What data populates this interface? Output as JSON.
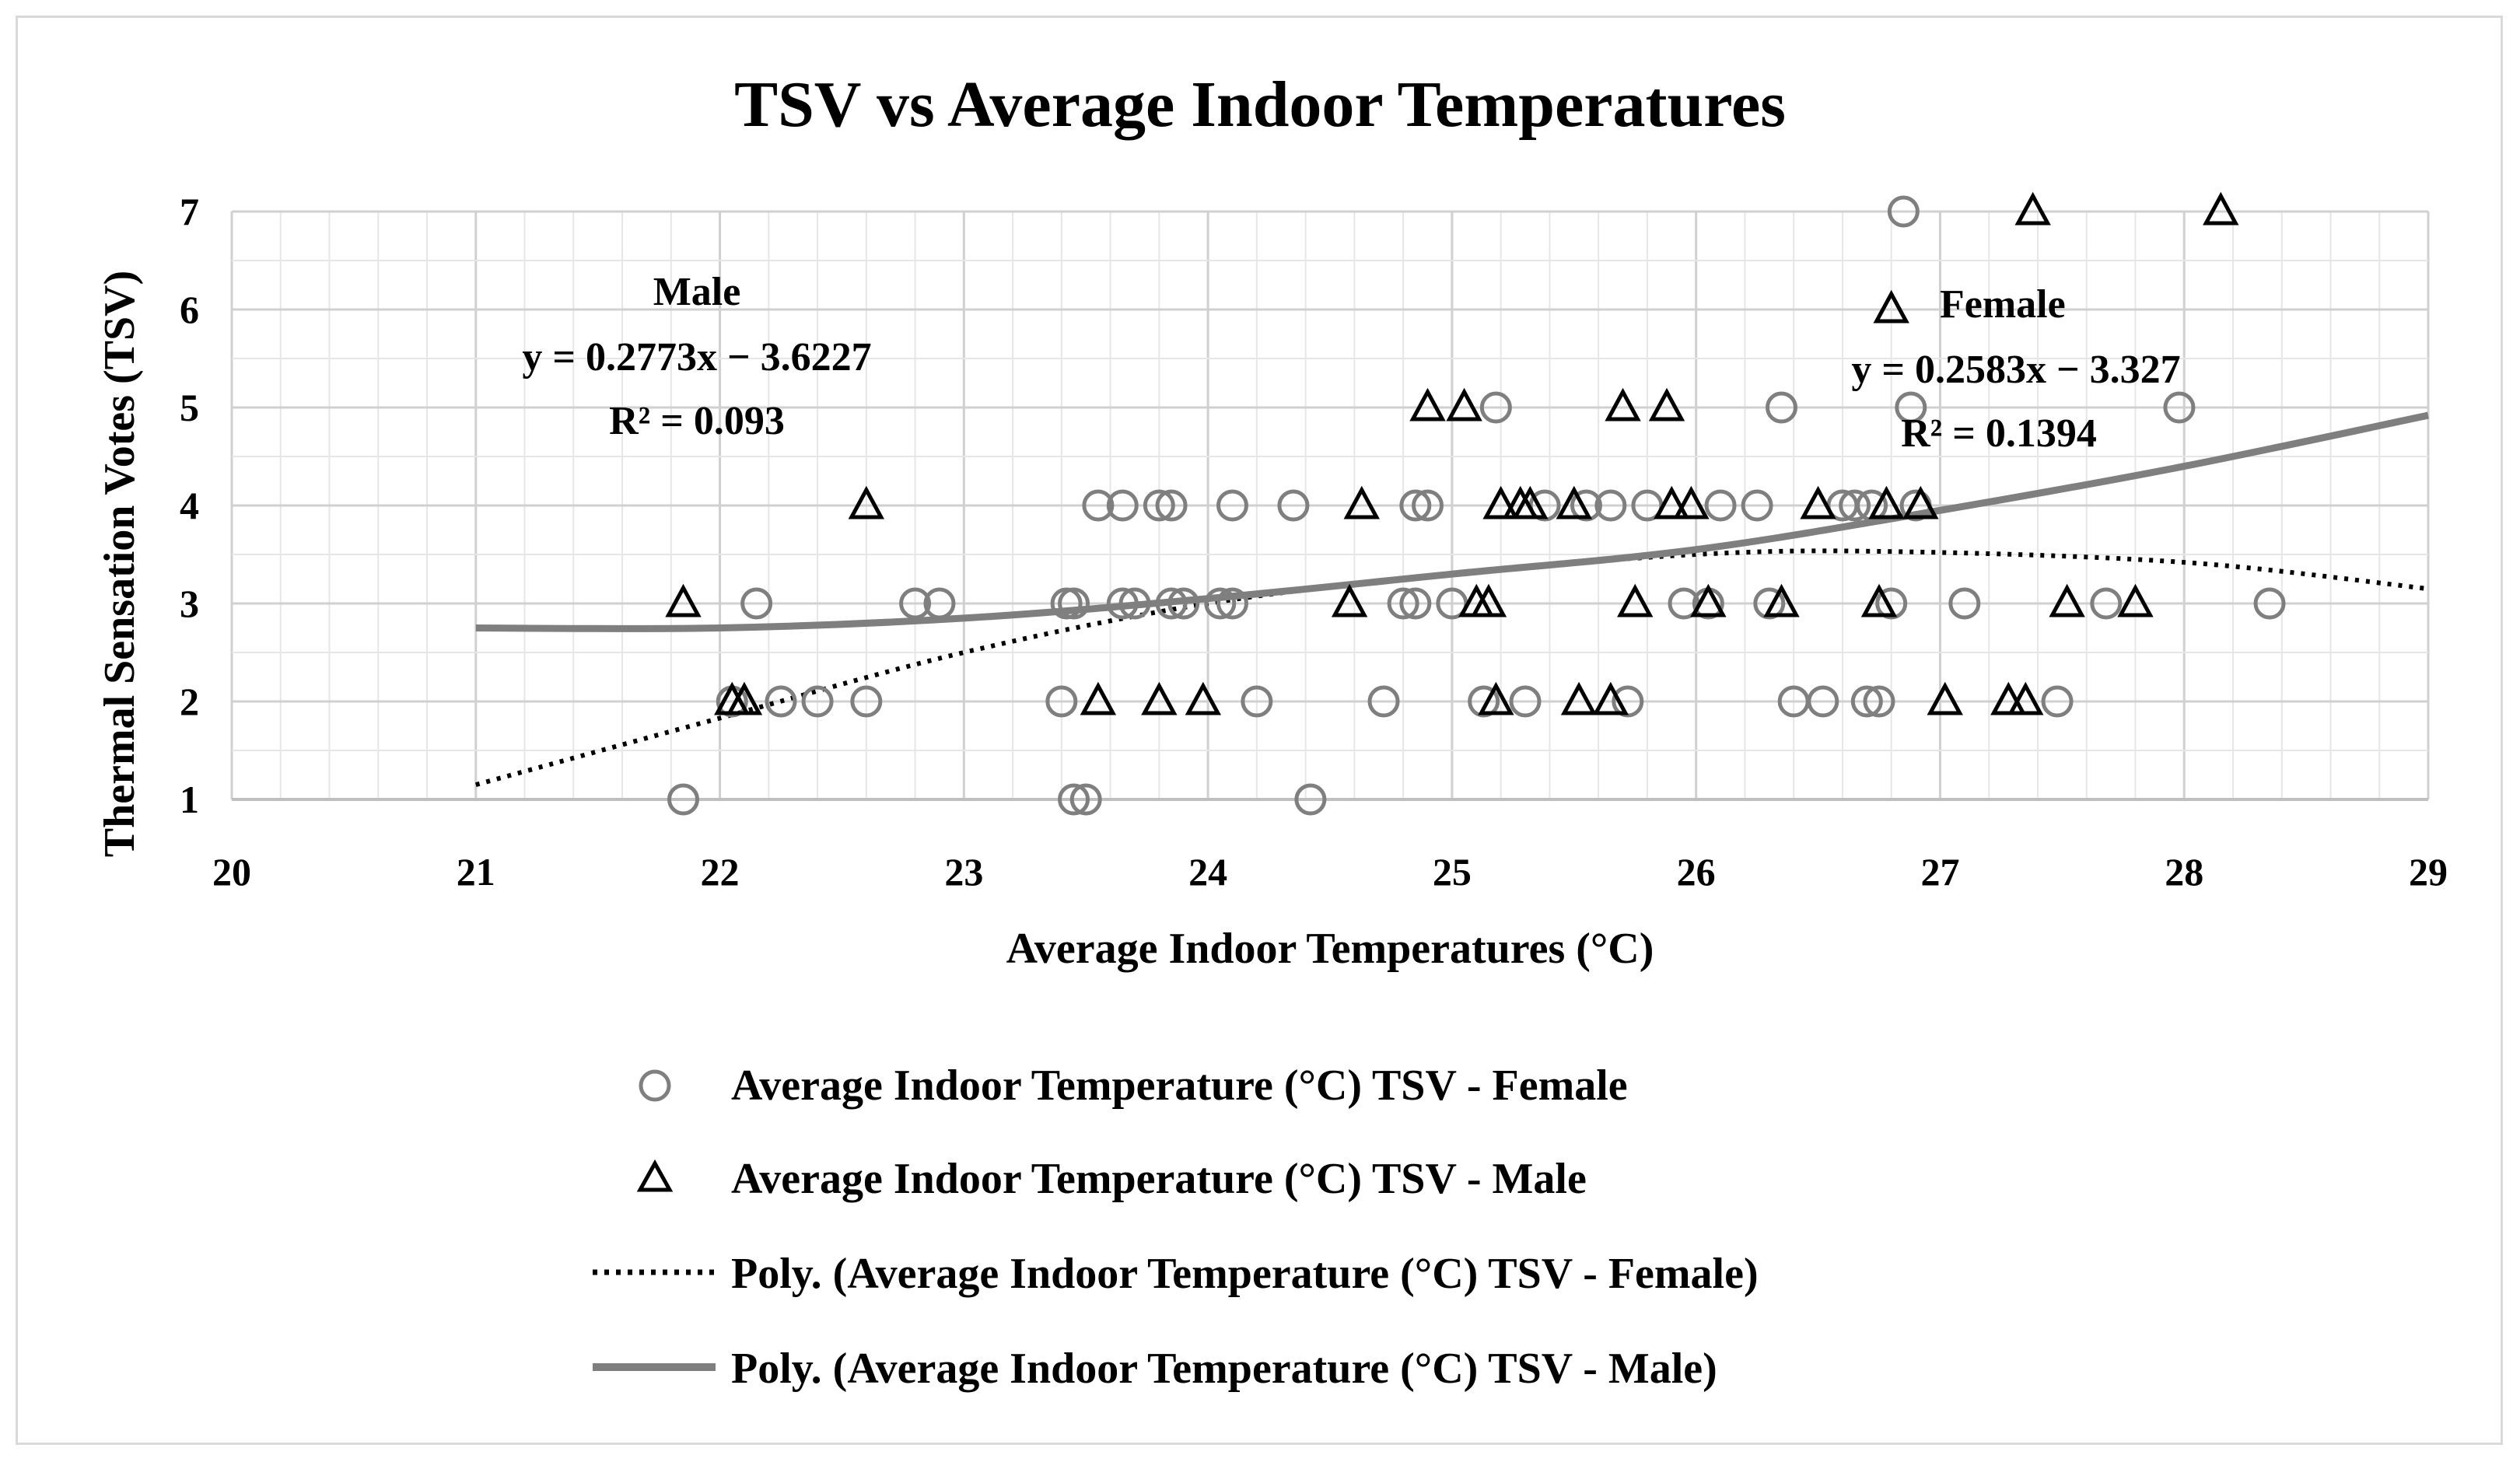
{
  "chart_data": {
    "type": "scatter",
    "title": "TSV vs Average Indoor Temperatures",
    "xlabel": "Average Indoor Temperatures (°C)",
    "ylabel": "Thermal Sensation Votes (TSV)",
    "xlim": [
      20,
      29
    ],
    "ylim": [
      1,
      7
    ],
    "x_ticks": [
      "20",
      "21",
      "22",
      "23",
      "24",
      "25",
      "26",
      "27",
      "28",
      "29"
    ],
    "y_ticks": [
      "1",
      "2",
      "3",
      "4",
      "5",
      "6",
      "7"
    ],
    "grid": true,
    "legend_position": "bottom",
    "series": [
      {
        "name": "Average Indoor Temperature (°C) TSV - Female",
        "marker": "circle",
        "color": "#7f7f7f",
        "points": [
          [
            21.85,
            1
          ],
          [
            22.15,
            3
          ],
          [
            22.05,
            2
          ],
          [
            22.25,
            2
          ],
          [
            22.4,
            2
          ],
          [
            22.6,
            2
          ],
          [
            22.8,
            3
          ],
          [
            22.9,
            3
          ],
          [
            23.4,
            2
          ],
          [
            23.45,
            3
          ],
          [
            23.42,
            3
          ],
          [
            23.45,
            1
          ],
          [
            23.5,
            1
          ],
          [
            23.55,
            4
          ],
          [
            23.65,
            4
          ],
          [
            23.65,
            3
          ],
          [
            23.7,
            3
          ],
          [
            23.8,
            4
          ],
          [
            23.85,
            4
          ],
          [
            23.85,
            3
          ],
          [
            23.9,
            3
          ],
          [
            24.05,
            3
          ],
          [
            24.1,
            3
          ],
          [
            24.1,
            4
          ],
          [
            24.2,
            2
          ],
          [
            24.35,
            4
          ],
          [
            24.42,
            1
          ],
          [
            24.72,
            2
          ],
          [
            24.8,
            3
          ],
          [
            24.85,
            4
          ],
          [
            24.85,
            3
          ],
          [
            24.9,
            4
          ],
          [
            25.0,
            3
          ],
          [
            25.13,
            2
          ],
          [
            25.18,
            5
          ],
          [
            25.3,
            2
          ],
          [
            25.38,
            4
          ],
          [
            25.55,
            4
          ],
          [
            25.65,
            4
          ],
          [
            25.72,
            2
          ],
          [
            25.8,
            4
          ],
          [
            25.95,
            3
          ],
          [
            26.05,
            3
          ],
          [
            26.1,
            4
          ],
          [
            26.25,
            4
          ],
          [
            26.3,
            3
          ],
          [
            26.35,
            5
          ],
          [
            26.4,
            2
          ],
          [
            26.52,
            2
          ],
          [
            26.6,
            4
          ],
          [
            26.65,
            4
          ],
          [
            26.7,
            2
          ],
          [
            26.72,
            4
          ],
          [
            26.75,
            2
          ],
          [
            26.8,
            3
          ],
          [
            26.85,
            7
          ],
          [
            26.88,
            5
          ],
          [
            26.9,
            4
          ],
          [
            27.1,
            3
          ],
          [
            27.48,
            2
          ],
          [
            27.68,
            3
          ],
          [
            27.98,
            5
          ],
          [
            28.35,
            3
          ]
        ]
      },
      {
        "name": "Average Indoor Temperature (°C) TSV - Male",
        "marker": "triangle",
        "color": "#000000",
        "points": [
          [
            21.85,
            3
          ],
          [
            22.05,
            2
          ],
          [
            22.1,
            2
          ],
          [
            22.6,
            4
          ],
          [
            23.55,
            2
          ],
          [
            23.8,
            2
          ],
          [
            23.98,
            2
          ],
          [
            24.58,
            3
          ],
          [
            24.63,
            4
          ],
          [
            24.9,
            5
          ],
          [
            25.05,
            5
          ],
          [
            25.1,
            3
          ],
          [
            25.15,
            3
          ],
          [
            25.18,
            2
          ],
          [
            25.2,
            4
          ],
          [
            25.28,
            4
          ],
          [
            25.32,
            4
          ],
          [
            25.5,
            4
          ],
          [
            25.52,
            2
          ],
          [
            25.65,
            2
          ],
          [
            25.7,
            5
          ],
          [
            25.75,
            3
          ],
          [
            25.88,
            5
          ],
          [
            25.9,
            4
          ],
          [
            25.98,
            4
          ],
          [
            26.05,
            3
          ],
          [
            26.35,
            3
          ],
          [
            26.5,
            4
          ],
          [
            26.75,
            3
          ],
          [
            26.78,
            4
          ],
          [
            26.8,
            6
          ],
          [
            26.92,
            4
          ],
          [
            27.02,
            2
          ],
          [
            27.28,
            2
          ],
          [
            27.35,
            2
          ],
          [
            27.38,
            7
          ],
          [
            27.52,
            3
          ],
          [
            27.8,
            3
          ],
          [
            28.15,
            7
          ]
        ]
      }
    ],
    "trendlines": [
      {
        "name": "Poly. (Average Indoor Temperature (°C) TSV - Female)",
        "style": "dotted",
        "color": "#000000",
        "sample_points": [
          [
            21,
            1.15
          ],
          [
            22,
            1.83
          ],
          [
            23,
            2.5
          ],
          [
            24,
            3.0
          ],
          [
            25,
            3.3
          ],
          [
            26,
            3.5
          ],
          [
            26.8,
            3.53
          ],
          [
            28,
            3.42
          ],
          [
            29,
            3.15
          ]
        ]
      },
      {
        "name": "Poly. (Average Indoor Temperature (°C) TSV - Male)",
        "style": "solid",
        "color": "#7f7f7f",
        "sample_points": [
          [
            21,
            2.75
          ],
          [
            22,
            2.75
          ],
          [
            23,
            2.85
          ],
          [
            24,
            3.05
          ],
          [
            25,
            3.3
          ],
          [
            26,
            3.55
          ],
          [
            27,
            3.95
          ],
          [
            28,
            4.4
          ],
          [
            29,
            4.92
          ]
        ]
      }
    ],
    "annotations": {
      "male_label": "Male",
      "male_equation": "y = 0.2773x − 3.6227",
      "male_r2": "R² = 0.093",
      "female_label": "Female",
      "female_equation": "y = 0.2583x − 3.327",
      "female_r2": "R² = 0.1394"
    }
  }
}
